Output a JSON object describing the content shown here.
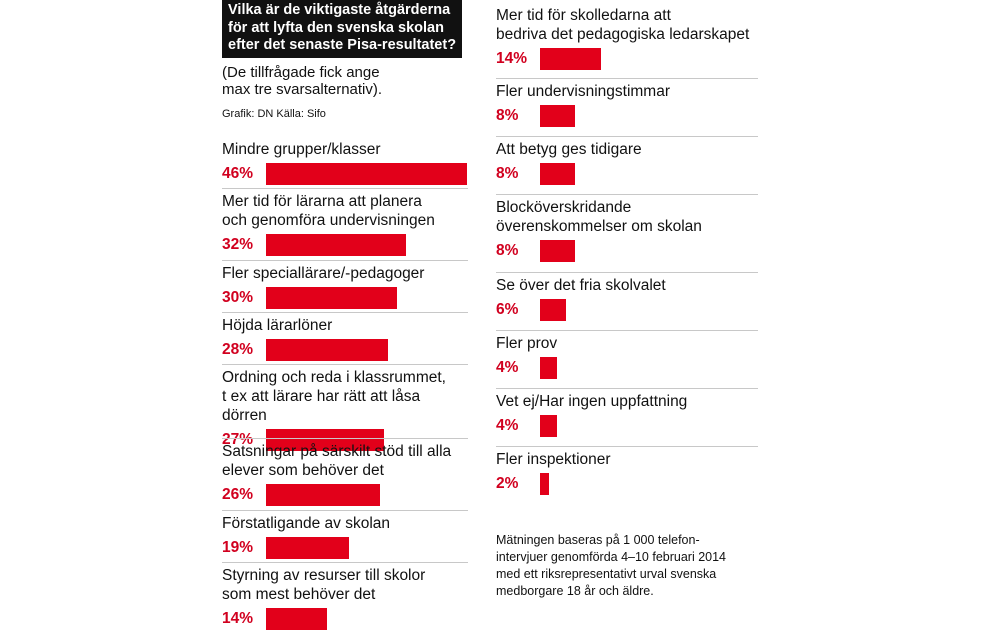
{
  "title": "Vilka är de viktigaste åtgärderna\nför att lyfta den svenska skolan\nefter det senaste Pisa-resultatet?",
  "subtitle": "(De tillfrågade fick ange\nmax tre svarsalternativ).",
  "credit": "Grafik: DN  Källa: Sifo",
  "note": "Mätningen baseras på 1 000 telefon-\nintervjuer genomförda 4–10 februari 2014\nmed ett riksrepresentativt urval svenska\nmedborgare 18 år och äldre.",
  "colors": {
    "bar": "#e2001a",
    "percent_text": "#d1001f",
    "title_bg": "#111111"
  },
  "chart_data": {
    "type": "bar",
    "orientation": "horizontal",
    "unit": "%",
    "max": 46,
    "categories": [
      "Mindre grupper/klasser",
      "Mer tid för lärarna att planera\noch genomföra undervisningen",
      "Fler speciallärare/-pedagoger",
      "Höjda lärarlöner",
      "Ordning och reda i klassrummet,\nt ex att lärare har rätt att låsa dörren",
      "Satsningar på särskilt stöd till alla\nelever som behöver det",
      "Förstatligande av skolan",
      "Styrning av resurser till skolor\nsom mest behöver det",
      "Mer tid för skolledarna att\nbedriva det pedagogiska ledarskapet",
      "Fler undervisningstimmar",
      "Att betyg ges tidigare",
      "Blocköverskridande\növerenskommelser om skolan",
      "Se över det fria skolvalet",
      "Fler prov",
      "Vet ej/Har ingen uppfattning",
      "Fler inspektioner"
    ],
    "values": [
      46,
      32,
      30,
      28,
      27,
      26,
      19,
      14,
      14,
      8,
      8,
      8,
      6,
      4,
      4,
      2
    ],
    "value_labels": [
      "46%",
      "32%",
      "30%",
      "28%",
      "27%",
      "26%",
      "19%",
      "14%",
      "14%",
      "8%",
      "8%",
      "8%",
      "6%",
      "4%",
      "4%",
      "2%"
    ]
  }
}
